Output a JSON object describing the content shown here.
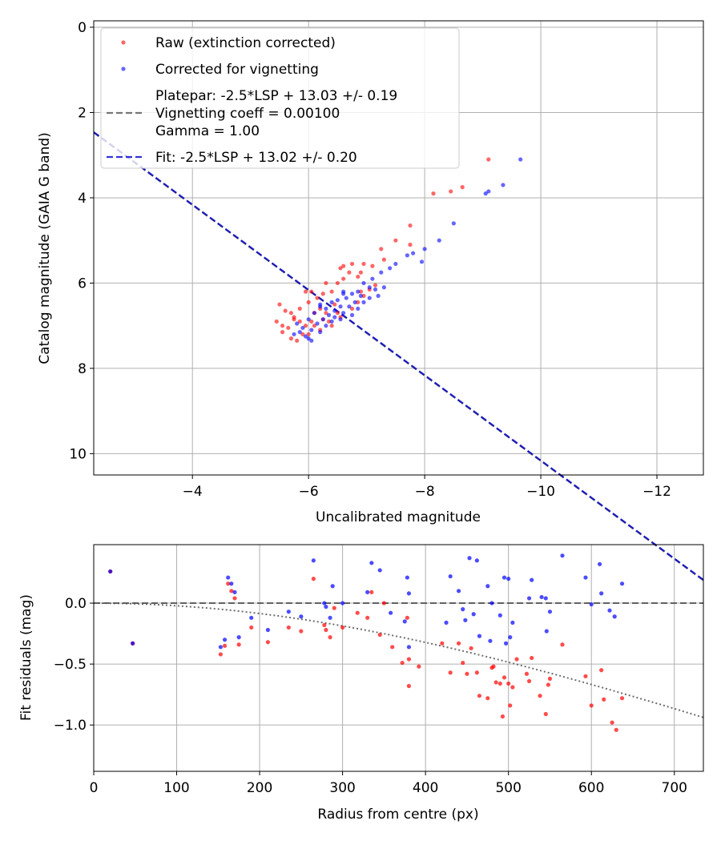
{
  "colors": {
    "raw": "#ff0000",
    "corrected": "#0000ff",
    "platepar_line": "#555555",
    "fit_line": "#0000cc",
    "vignetting_curve": "#555555"
  },
  "chart_data": [
    {
      "type": "scatter",
      "title": "",
      "xlabel": "Uncalibrated magnitude",
      "ylabel": "Catalog magnitude (GAIA G band)",
      "xlim": [
        -2.3,
        -12.8
      ],
      "ylim": [
        10.5,
        -0.15
      ],
      "xticks": [
        -4,
        -6,
        -8,
        -10,
        -12
      ],
      "xtick_labels": [
        "−4",
        "−6",
        "−8",
        "−10",
        "−12"
      ],
      "yticks": [
        0,
        2,
        4,
        6,
        8,
        10
      ],
      "ytick_labels": [
        "0",
        "2",
        "4",
        "6",
        "8",
        "10"
      ],
      "grid": true,
      "legend_position": "top-left",
      "legend": [
        {
          "kind": "marker",
          "color": "#ff0000",
          "text": [
            "Raw (extinction corrected)"
          ]
        },
        {
          "kind": "marker",
          "color": "#0000ff",
          "text": [
            "Corrected for vignetting"
          ]
        },
        {
          "kind": "line",
          "color": "#555555",
          "dash": true,
          "text": [
            "Platepar: -2.5*LSP + 13.03 +/- 0.19",
            "Vignetting coeff = 0.00100",
            "Gamma = 1.00"
          ]
        },
        {
          "kind": "line",
          "color": "#0000cc",
          "dash": true,
          "text": [
            "Fit: -2.5*LSP + 13.02 +/- 0.20"
          ]
        }
      ],
      "lines": [
        {
          "name": "Platepar",
          "slope": -1.0,
          "intercept": 0.17,
          "color": "#555555"
        },
        {
          "name": "Fit",
          "slope": -1.0,
          "intercept": 0.16,
          "color": "#0000cc"
        }
      ],
      "series": [
        {
          "name": "Raw (extinction corrected)",
          "color": "#ff0000",
          "points": [
            [
              -9.1,
              3.1
            ],
            [
              -8.45,
              3.85
            ],
            [
              -8.65,
              3.75
            ],
            [
              -8.15,
              3.9
            ],
            [
              -7.75,
              4.65
            ],
            [
              -7.75,
              5.1
            ],
            [
              -7.5,
              5.0
            ],
            [
              -7.25,
              5.2
            ],
            [
              -7.3,
              5.45
            ],
            [
              -7.1,
              5.6
            ],
            [
              -6.95,
              5.55
            ],
            [
              -6.9,
              5.75
            ],
            [
              -6.85,
              5.85
            ],
            [
              -6.75,
              5.55
            ],
            [
              -6.7,
              5.75
            ],
            [
              -6.6,
              5.6
            ],
            [
              -6.55,
              5.65
            ],
            [
              -6.6,
              5.9
            ],
            [
              -6.5,
              6.0
            ],
            [
              -6.4,
              6.2
            ],
            [
              -6.3,
              6.0
            ],
            [
              -6.25,
              6.25
            ],
            [
              -6.15,
              6.35
            ],
            [
              -6.05,
              6.2
            ],
            [
              -5.95,
              6.2
            ],
            [
              -6.0,
              6.45
            ],
            [
              -6.2,
              6.6
            ],
            [
              -6.1,
              6.7
            ],
            [
              -6.3,
              6.7
            ],
            [
              -6.45,
              6.5
            ],
            [
              -6.5,
              6.7
            ],
            [
              -6.35,
              6.9
            ],
            [
              -6.25,
              6.85
            ],
            [
              -6.05,
              6.9
            ],
            [
              -6.4,
              7.0
            ],
            [
              -6.2,
              7.1
            ],
            [
              -6.0,
              7.2
            ],
            [
              -5.95,
              7.0
            ],
            [
              -5.85,
              6.9
            ],
            [
              -5.75,
              6.8
            ],
            [
              -5.85,
              6.6
            ],
            [
              -5.7,
              6.7
            ],
            [
              -5.75,
              6.85
            ],
            [
              -5.65,
              7.05
            ],
            [
              -5.55,
              7.0
            ],
            [
              -5.45,
              6.9
            ],
            [
              -5.6,
              6.65
            ],
            [
              -5.5,
              6.5
            ],
            [
              -5.55,
              7.15
            ],
            [
              -5.7,
              7.3
            ],
            [
              -5.8,
              7.35
            ],
            [
              -5.9,
              7.2
            ],
            [
              -6.1,
              7.0
            ],
            [
              -6.55,
              6.8
            ],
            [
              -6.75,
              6.6
            ],
            [
              -6.85,
              6.45
            ],
            [
              -6.95,
              6.3
            ],
            [
              -7.05,
              6.15
            ],
            [
              -6.9,
              6.2
            ],
            [
              -7.15,
              6.05
            ]
          ]
        },
        {
          "name": "Corrected for vignetting",
          "color": "#0000ff",
          "points": [
            [
              -9.65,
              3.1
            ],
            [
              -9.35,
              3.7
            ],
            [
              -9.1,
              3.85
            ],
            [
              -9.05,
              3.9
            ],
            [
              -8.5,
              4.6
            ],
            [
              -8.25,
              5.0
            ],
            [
              -8.0,
              5.2
            ],
            [
              -7.95,
              5.5
            ],
            [
              -7.8,
              5.3
            ],
            [
              -7.7,
              5.35
            ],
            [
              -7.5,
              5.55
            ],
            [
              -7.4,
              5.65
            ],
            [
              -7.3,
              6.1
            ],
            [
              -7.25,
              5.75
            ],
            [
              -7.1,
              5.9
            ],
            [
              -7.05,
              6.1
            ],
            [
              -6.95,
              6.0
            ],
            [
              -6.9,
              6.3
            ],
            [
              -6.85,
              6.2
            ],
            [
              -6.8,
              6.45
            ],
            [
              -6.75,
              6.25
            ],
            [
              -6.65,
              6.35
            ],
            [
              -6.6,
              6.2
            ],
            [
              -6.55,
              6.55
            ],
            [
              -6.5,
              6.4
            ],
            [
              -6.45,
              6.65
            ],
            [
              -6.4,
              6.45
            ],
            [
              -6.35,
              6.75
            ],
            [
              -6.3,
              6.6
            ],
            [
              -6.25,
              6.85
            ],
            [
              -6.2,
              6.5
            ],
            [
              -6.15,
              6.95
            ],
            [
              -6.1,
              6.7
            ],
            [
              -6.05,
              7.1
            ],
            [
              -6.0,
              6.85
            ],
            [
              -5.95,
              7.25
            ],
            [
              -5.9,
              7.05
            ],
            [
              -5.85,
              7.15
            ],
            [
              -5.8,
              6.95
            ],
            [
              -5.75,
              7.2
            ],
            [
              -6.0,
              7.3
            ],
            [
              -6.05,
              7.35
            ],
            [
              -6.2,
              7.15
            ],
            [
              -6.3,
              7.0
            ],
            [
              -6.4,
              6.9
            ],
            [
              -6.55,
              6.85
            ],
            [
              -6.6,
              6.7
            ],
            [
              -6.7,
              6.55
            ],
            [
              -6.85,
              6.6
            ],
            [
              -6.95,
              6.45
            ],
            [
              -7.05,
              6.35
            ],
            [
              -7.15,
              6.15
            ],
            [
              -6.6,
              6.25
            ],
            [
              -6.75,
              6.75
            ],
            [
              -6.45,
              6.8
            ],
            [
              -6.2,
              6.55
            ],
            [
              -7.2,
              6.3
            ]
          ]
        }
      ]
    },
    {
      "type": "scatter",
      "title": "",
      "xlabel": "Radius from centre (px)",
      "ylabel": "Fit residuals (mag)",
      "xlim": [
        0,
        735
      ],
      "ylim": [
        -1.38,
        0.48
      ],
      "xticks": [
        0,
        100,
        200,
        300,
        400,
        500,
        600,
        700
      ],
      "xtick_labels": [
        "0",
        "100",
        "200",
        "300",
        "400",
        "500",
        "600",
        "700"
      ],
      "yticks": [
        0.0,
        -0.5,
        -1.0
      ],
      "ytick_labels": [
        "0.0",
        "−0.5",
        "−1.0"
      ],
      "grid": true,
      "reference_line": {
        "y": 0.0,
        "color": "#555555"
      },
      "vignetting_curve": {
        "coeff": 0.001,
        "color": "#555555"
      },
      "series": [
        {
          "name": "Raw (extinction corrected)",
          "color": "#ff0000",
          "points": [
            [
              20,
              0.26
            ],
            [
              47,
              -0.33
            ],
            [
              153,
              -0.42
            ],
            [
              158,
              -0.35
            ],
            [
              162,
              0.16
            ],
            [
              166,
              0.1
            ],
            [
              170,
              0.04
            ],
            [
              175,
              -0.34
            ],
            [
              190,
              -0.2
            ],
            [
              210,
              -0.32
            ],
            [
              235,
              -0.2
            ],
            [
              250,
              -0.23
            ],
            [
              265,
              0.2
            ],
            [
              278,
              -0.18
            ],
            [
              280,
              -0.22
            ],
            [
              285,
              -0.28
            ],
            [
              290,
              -0.04
            ],
            [
              300,
              -0.2
            ],
            [
              318,
              -0.08
            ],
            [
              330,
              -0.12
            ],
            [
              335,
              0.09
            ],
            [
              345,
              -0.26
            ],
            [
              350,
              0.0
            ],
            [
              360,
              -0.36
            ],
            [
              372,
              -0.49
            ],
            [
              378,
              -0.12
            ],
            [
              380,
              -0.46
            ],
            [
              380,
              -0.68
            ],
            [
              392,
              -0.52
            ],
            [
              420,
              -0.33
            ],
            [
              430,
              -0.57
            ],
            [
              440,
              -0.33
            ],
            [
              445,
              -0.49
            ],
            [
              450,
              -0.58
            ],
            [
              455,
              -0.37
            ],
            [
              462,
              -0.57
            ],
            [
              465,
              -0.76
            ],
            [
              475,
              -0.78
            ],
            [
              480,
              -0.53
            ],
            [
              482,
              -0.52
            ],
            [
              485,
              -0.65
            ],
            [
              490,
              -0.66
            ],
            [
              493,
              -0.93
            ],
            [
              495,
              -0.61
            ],
            [
              500,
              -0.66
            ],
            [
              502,
              -0.84
            ],
            [
              505,
              -0.69
            ],
            [
              510,
              -0.46
            ],
            [
              522,
              -0.58
            ],
            [
              525,
              -0.64
            ],
            [
              528,
              -0.45
            ],
            [
              538,
              -0.76
            ],
            [
              545,
              -0.91
            ],
            [
              548,
              -0.67
            ],
            [
              550,
              -0.62
            ],
            [
              565,
              -0.34
            ],
            [
              593,
              -0.6
            ],
            [
              600,
              -0.84
            ],
            [
              612,
              -0.55
            ],
            [
              615,
              -0.79
            ],
            [
              625,
              -0.98
            ],
            [
              630,
              -1.04
            ],
            [
              637,
              -0.78
            ]
          ]
        },
        {
          "name": "Corrected for vignetting",
          "color": "#0000ff",
          "points": [
            [
              20,
              0.26
            ],
            [
              47,
              -0.33
            ],
            [
              153,
              -0.36
            ],
            [
              158,
              -0.3
            ],
            [
              162,
              0.21
            ],
            [
              166,
              0.16
            ],
            [
              170,
              0.09
            ],
            [
              175,
              -0.28
            ],
            [
              190,
              -0.12
            ],
            [
              210,
              -0.22
            ],
            [
              235,
              -0.07
            ],
            [
              250,
              -0.11
            ],
            [
              265,
              0.35
            ],
            [
              278,
              0.0
            ],
            [
              280,
              -0.03
            ],
            [
              285,
              -0.12
            ],
            [
              288,
              0.14
            ],
            [
              300,
              0.0
            ],
            [
              330,
              0.09
            ],
            [
              335,
              0.33
            ],
            [
              345,
              0.27
            ],
            [
              358,
              -0.08
            ],
            [
              375,
              -0.15
            ],
            [
              378,
              0.21
            ],
            [
              380,
              0.08
            ],
            [
              380,
              -0.36
            ],
            [
              430,
              0.22
            ],
            [
              425,
              -0.16
            ],
            [
              440,
              0.1
            ],
            [
              445,
              -0.05
            ],
            [
              448,
              -0.14
            ],
            [
              453,
              0.37
            ],
            [
              458,
              -0.09
            ],
            [
              462,
              0.35
            ],
            [
              465,
              -0.27
            ],
            [
              475,
              0.14
            ],
            [
              478,
              -0.31
            ],
            [
              480,
              0.0
            ],
            [
              490,
              -0.1
            ],
            [
              495,
              0.21
            ],
            [
              497,
              -0.33
            ],
            [
              500,
              0.2
            ],
            [
              502,
              -0.28
            ],
            [
              505,
              -0.16
            ],
            [
              525,
              0.04
            ],
            [
              528,
              0.19
            ],
            [
              540,
              0.05
            ],
            [
              545,
              0.04
            ],
            [
              546,
              -0.23
            ],
            [
              550,
              -0.07
            ],
            [
              565,
              0.39
            ],
            [
              593,
              0.21
            ],
            [
              600,
              -0.01
            ],
            [
              610,
              0.32
            ],
            [
              612,
              0.08
            ],
            [
              622,
              -0.06
            ],
            [
              628,
              -0.11
            ],
            [
              637,
              0.16
            ]
          ]
        }
      ]
    }
  ]
}
